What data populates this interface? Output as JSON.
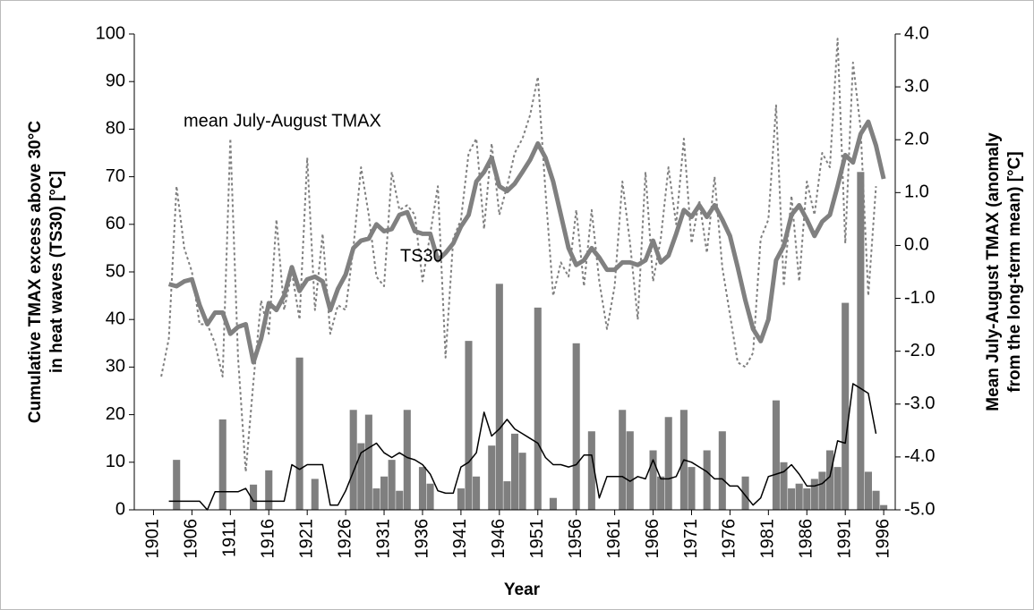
{
  "chart_data": {
    "type": "combo",
    "xlabel": "Year",
    "ylabel": [
      "Cumulative TMAX excess above 30°C",
      "in heat waves (TS30) [°C]"
    ],
    "y2label": [
      "Mean July-August TMAX (anomaly",
      "from the long-term mean) [°C]"
    ],
    "xlim": [
      1898.5,
      1997.5
    ],
    "xticks": [
      1901,
      1906,
      1911,
      1916,
      1921,
      1926,
      1931,
      1936,
      1941,
      1946,
      1951,
      1956,
      1961,
      1966,
      1971,
      1976,
      1981,
      1986,
      1991,
      1996
    ],
    "ylim": [
      0,
      100
    ],
    "yticks": [
      0,
      10,
      20,
      30,
      40,
      50,
      60,
      70,
      80,
      90,
      100
    ],
    "y2lim": [
      -5,
      4
    ],
    "y2ticks": [
      {
        "value": -5,
        "label": "-5.0"
      },
      {
        "value": -4,
        "label": "-4.0"
      },
      {
        "value": -3,
        "label": "-3.0"
      },
      {
        "value": -2,
        "label": "-2.0"
      },
      {
        "value": -1,
        "label": "-1.0"
      },
      {
        "value": 0,
        "label": "0.0"
      },
      {
        "value": 1,
        "label": "1.0"
      },
      {
        "value": 2,
        "label": "2.0"
      },
      {
        "value": 3,
        "label": "3.0"
      },
      {
        "value": 4,
        "label": "4.0"
      }
    ],
    "x": [
      1901,
      1902,
      1903,
      1904,
      1905,
      1906,
      1907,
      1908,
      1909,
      1910,
      1911,
      1912,
      1913,
      1914,
      1915,
      1916,
      1917,
      1918,
      1919,
      1920,
      1921,
      1922,
      1923,
      1924,
      1925,
      1926,
      1927,
      1928,
      1929,
      1930,
      1931,
      1932,
      1933,
      1934,
      1935,
      1936,
      1937,
      1938,
      1939,
      1940,
      1941,
      1942,
      1943,
      1944,
      1945,
      1946,
      1947,
      1948,
      1949,
      1950,
      1951,
      1952,
      1953,
      1954,
      1955,
      1956,
      1957,
      1958,
      1959,
      1960,
      1961,
      1962,
      1963,
      1964,
      1965,
      1966,
      1967,
      1968,
      1969,
      1970,
      1971,
      1972,
      1973,
      1974,
      1975,
      1976,
      1977,
      1978,
      1979,
      1980,
      1981,
      1982,
      1983,
      1984,
      1985,
      1986,
      1987,
      1988,
      1989,
      1990,
      1991,
      1992,
      1993,
      1994,
      1995,
      1996
    ],
    "series": [
      {
        "type": "bar",
        "color": "#7f7f7f",
        "values": [
          null,
          null,
          null,
          10.5,
          null,
          null,
          null,
          null,
          null,
          19,
          null,
          null,
          null,
          5.3,
          null,
          8.3,
          null,
          null,
          null,
          32,
          null,
          6.5,
          null,
          null,
          null,
          null,
          21,
          14,
          20,
          4.5,
          7,
          10.5,
          4,
          21,
          null,
          9,
          5.5,
          null,
          null,
          null,
          4.5,
          35.5,
          7,
          null,
          13.5,
          47.5,
          6,
          16,
          12,
          null,
          42.5,
          null,
          2.5,
          null,
          null,
          35,
          null,
          16.5,
          null,
          null,
          null,
          21,
          16.5,
          null,
          null,
          12.5,
          7,
          19.5,
          null,
          21,
          9,
          null,
          12.5,
          null,
          16.5,
          null,
          null,
          7,
          null,
          null,
          null,
          23,
          10,
          4.5,
          5.5,
          4.5,
          6.5,
          8,
          12.5,
          9,
          43.5,
          null,
          71,
          8,
          4,
          1
        ]
      },
      {
        "type": "dotted",
        "color": "#808080",
        "axis": "y2",
        "values": [
          null,
          -2.48,
          -1.76,
          1.12,
          -0.05,
          -0.5,
          -1.49,
          -1.49,
          -1.85,
          -2.48,
          2.02,
          -2.12,
          -4.28,
          -2.57,
          -1.04,
          -1.67,
          0.49,
          -1.22,
          -0.5,
          -1.4,
          1.66,
          -1.22,
          0.22,
          -1.67,
          -1.13,
          -1.22,
          -0.05,
          1.48,
          0.58,
          -0.59,
          -0.77,
          1.39,
          0.67,
          0.76,
          0.58,
          -0.68,
          0.22,
          1.12,
          -2.12,
          0.13,
          0.49,
          1.75,
          2.02,
          0.31,
          1.93,
          0.58,
          1.12,
          1.75,
          2.02,
          2.47,
          3.19,
          1.03,
          -0.95,
          -0.32,
          -0.59,
          0.67,
          -0.77,
          0.67,
          -0.68,
          -1.58,
          -0.77,
          1.21,
          0.04,
          -1.4,
          1.39,
          -0.68,
          0.13,
          1.48,
          0.4,
          2.02,
          0.04,
          0.85,
          -0.14,
          1.3,
          -0.41,
          -1.31,
          -2.21,
          -2.3,
          -2.03,
          0.13,
          0.49,
          2.65,
          -0.77,
          0.94,
          -0.68,
          1.21,
          0.58,
          1.75,
          1.48,
          3.91,
          0.04,
          3.46,
          2.2,
          -0.95,
          1.12,
          null
        ]
      },
      {
        "type": "line",
        "name": "TS30",
        "color": "#000000",
        "values": [
          null,
          null,
          1.8,
          1.8,
          1.8,
          1.8,
          1.8,
          0,
          3.8,
          3.8,
          3.8,
          3.8,
          4.5,
          1.8,
          1.8,
          1.8,
          1.8,
          1.8,
          9.5,
          8.5,
          9.5,
          9.5,
          9.5,
          1,
          1,
          4,
          8,
          12,
          13,
          14,
          12,
          11,
          12,
          11,
          10.5,
          9.5,
          7.5,
          4,
          3.5,
          3.5,
          9,
          10,
          12,
          20.5,
          15.5,
          17,
          19,
          17,
          16,
          15,
          14,
          11,
          9.5,
          9.5,
          9,
          9.5,
          11.5,
          11.5,
          2.5,
          7,
          7,
          7,
          6,
          7,
          6.5,
          10.5,
          6.5,
          6.5,
          7,
          10.5,
          10,
          9,
          8,
          6.5,
          6.5,
          5,
          5,
          3,
          1,
          2.5,
          7,
          7.5,
          8,
          9.5,
          7.5,
          5,
          5,
          5.5,
          7,
          14.5,
          14,
          26.5,
          25.5,
          24.5,
          16,
          null
        ]
      },
      {
        "type": "thick",
        "name": "mean July-August TMAX",
        "color": "#808080",
        "axis": "y2",
        "values": [
          null,
          null,
          -0.73,
          -0.77,
          -0.68,
          -0.64,
          -1.13,
          -1.49,
          -1.27,
          -1.27,
          -1.67,
          -1.54,
          -1.49,
          -2.21,
          -1.76,
          -1.09,
          -1.22,
          -0.95,
          -0.41,
          -0.86,
          -0.64,
          -0.59,
          -0.68,
          -1.22,
          -0.82,
          -0.55,
          -0.05,
          0.09,
          0.13,
          0.4,
          0.27,
          0.31,
          0.58,
          0.63,
          0.27,
          0.22,
          0.22,
          -0.28,
          -0.14,
          0.04,
          0.36,
          0.58,
          1.21,
          1.39,
          1.66,
          1.12,
          1.03,
          1.17,
          1.39,
          1.62,
          1.93,
          1.66,
          1.21,
          0.58,
          -0.05,
          -0.37,
          -0.28,
          -0.05,
          -0.23,
          -0.46,
          -0.46,
          -0.32,
          -0.32,
          -0.37,
          -0.28,
          0.09,
          -0.32,
          -0.19,
          0.22,
          0.67,
          0.54,
          0.76,
          0.54,
          0.76,
          0.49,
          0.18,
          -0.41,
          -1.04,
          -1.58,
          -1.81,
          -1.4,
          -0.28,
          -0.01,
          0.58,
          0.76,
          0.49,
          0.18,
          0.45,
          0.58,
          1.12,
          1.71,
          1.57,
          2.11,
          2.34,
          1.89,
          1.26
        ]
      }
    ]
  }
}
